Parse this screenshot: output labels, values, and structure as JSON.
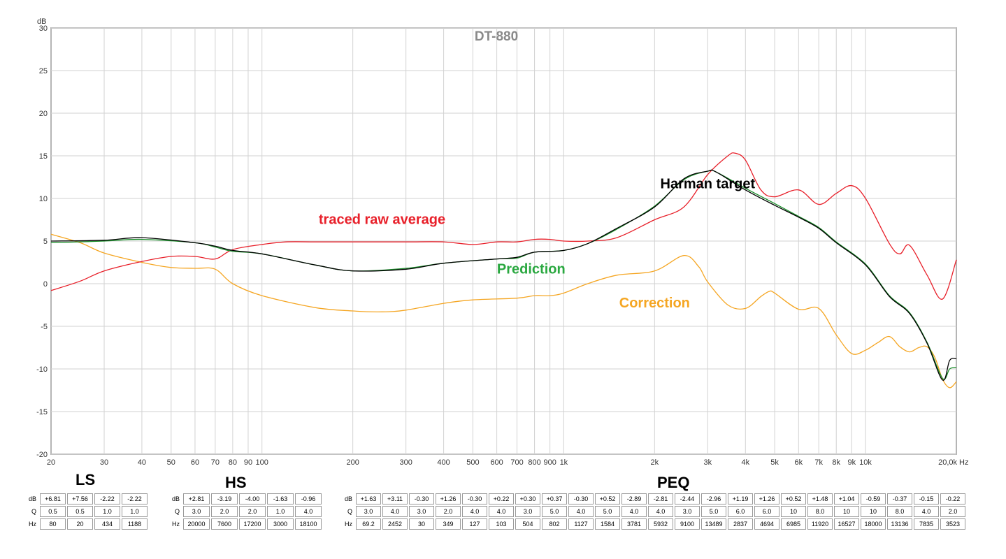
{
  "chart_data": {
    "type": "line",
    "title": "DT-880",
    "y_unit_label": "dB",
    "x_unit_label": "Hz",
    "xscale": "log",
    "xlim": [
      20,
      20000
    ],
    "ylim": [
      -20,
      30
    ],
    "grid": true,
    "y_ticks": [
      "30",
      "25",
      "20",
      "15",
      "10",
      "5",
      "0",
      "-5",
      "-10",
      "-15",
      "-20"
    ],
    "x_ticks": [
      {
        "v": 20,
        "label": "20"
      },
      {
        "v": 30,
        "label": "30"
      },
      {
        "v": 40,
        "label": "40"
      },
      {
        "v": 50,
        "label": "50"
      },
      {
        "v": 60,
        "label": "60"
      },
      {
        "v": 70,
        "label": "70"
      },
      {
        "v": 80,
        "label": "80"
      },
      {
        "v": 90,
        "label": "90"
      },
      {
        "v": 100,
        "label": "100"
      },
      {
        "v": 200,
        "label": "200"
      },
      {
        "v": 300,
        "label": "300"
      },
      {
        "v": 400,
        "label": "400"
      },
      {
        "v": 500,
        "label": "500"
      },
      {
        "v": 600,
        "label": "600"
      },
      {
        "v": 700,
        "label": "700"
      },
      {
        "v": 800,
        "label": "800"
      },
      {
        "v": 900,
        "label": "900"
      },
      {
        "v": 1000,
        "label": "1k"
      },
      {
        "v": 2000,
        "label": "2k"
      },
      {
        "v": 3000,
        "label": "3k"
      },
      {
        "v": 4000,
        "label": "4k"
      },
      {
        "v": 5000,
        "label": "5k"
      },
      {
        "v": 6000,
        "label": "6k"
      },
      {
        "v": 7000,
        "label": "7k"
      },
      {
        "v": 8000,
        "label": "8k"
      },
      {
        "v": 9000,
        "label": "9k"
      },
      {
        "v": 10000,
        "label": "10k"
      },
      {
        "v": 20000,
        "label": "20,0k"
      }
    ],
    "series": [
      {
        "name": "traced raw average",
        "color": "#e8202a",
        "x": [
          20,
          25,
          30,
          40,
          50,
          60,
          70,
          80,
          100,
          120,
          150,
          200,
          300,
          400,
          500,
          600,
          700,
          800,
          900,
          1000,
          1200,
          1500,
          2000,
          2500,
          3000,
          3500,
          3700,
          4000,
          4500,
          5000,
          6000,
          7000,
          8000,
          9000,
          10000,
          12000,
          13000,
          14000,
          16000,
          18000,
          20000
        ],
        "y": [
          -0.8,
          0.3,
          1.5,
          2.6,
          3.2,
          3.2,
          2.9,
          4.0,
          4.6,
          4.9,
          4.9,
          4.9,
          4.9,
          4.9,
          4.6,
          4.9,
          4.9,
          5.2,
          5.2,
          5.0,
          5.0,
          5.4,
          7.5,
          9.0,
          12.8,
          15.0,
          15.3,
          14.5,
          11.0,
          10.2,
          11.0,
          9.3,
          10.6,
          11.5,
          10.0,
          4.7,
          3.5,
          4.5,
          1.0,
          -1.8,
          2.8
        ]
      },
      {
        "name": "Harman target",
        "color": "#000000",
        "x": [
          20,
          30,
          40,
          60,
          70,
          80,
          100,
          150,
          200,
          300,
          400,
          600,
          700,
          800,
          1000,
          1200,
          1500,
          2000,
          2500,
          3000,
          3200,
          4000,
          5000,
          6000,
          7000,
          8000,
          10000,
          12000,
          14000,
          16000,
          18000,
          19000,
          20000
        ],
        "y": [
          5.0,
          5.1,
          5.4,
          4.8,
          4.4,
          3.9,
          3.5,
          2.2,
          1.5,
          1.7,
          2.4,
          2.9,
          3.1,
          3.7,
          3.9,
          4.7,
          6.5,
          9.0,
          12.3,
          13.2,
          13.1,
          11.0,
          9.2,
          7.8,
          6.5,
          4.8,
          2.2,
          -1.5,
          -3.5,
          -7.0,
          -11.3,
          -9.0,
          -8.8
        ]
      },
      {
        "name": "Prediction",
        "color": "#1a8f2a",
        "x": [
          20,
          30,
          40,
          60,
          70,
          80,
          100,
          150,
          200,
          300,
          400,
          600,
          700,
          800,
          1000,
          1200,
          1500,
          2000,
          2500,
          3000,
          3200,
          4000,
          5000,
          6000,
          7000,
          8000,
          10000,
          12000,
          14000,
          16000,
          18000,
          19000,
          20000
        ],
        "y": [
          4.8,
          5.0,
          5.2,
          4.8,
          4.3,
          3.8,
          3.5,
          2.2,
          1.5,
          1.8,
          2.4,
          2.9,
          3.0,
          3.7,
          3.9,
          4.7,
          6.4,
          9.1,
          12.2,
          13.2,
          13.1,
          11.2,
          9.4,
          7.9,
          6.6,
          4.9,
          2.3,
          -1.4,
          -3.4,
          -6.9,
          -11.1,
          -10.0,
          -9.8
        ]
      },
      {
        "name": "Correction",
        "color": "#f5a623",
        "x": [
          20,
          25,
          30,
          40,
          50,
          60,
          70,
          80,
          100,
          150,
          200,
          250,
          300,
          400,
          500,
          700,
          800,
          900,
          1000,
          1200,
          1500,
          2000,
          2500,
          2800,
          3000,
          3500,
          4000,
          4500,
          4800,
          5000,
          6000,
          7000,
          8000,
          9000,
          10000,
          11000,
          12000,
          13000,
          14000,
          15000,
          16000,
          17000,
          18000,
          19000,
          20000
        ],
        "y": [
          5.8,
          4.8,
          3.6,
          2.5,
          1.9,
          1.8,
          1.7,
          0.0,
          -1.4,
          -2.8,
          -3.2,
          -3.3,
          -3.1,
          -2.3,
          -1.9,
          -1.7,
          -1.4,
          -1.4,
          -1.1,
          0.0,
          1.0,
          1.5,
          3.3,
          2.0,
          0.2,
          -2.5,
          -2.9,
          -1.5,
          -0.9,
          -1.1,
          -3.0,
          -2.9,
          -6.0,
          -8.2,
          -7.8,
          -6.9,
          -6.2,
          -7.4,
          -8.0,
          -7.5,
          -7.4,
          -8.7,
          -11.2,
          -12.2,
          -11.5
        ]
      }
    ],
    "annotations": [
      {
        "text": "Harman target",
        "color": "#000000",
        "x": 3000,
        "y": 11.2
      },
      {
        "text": "traced raw average",
        "color": "#e8202a",
        "x": 250,
        "y": 7.0
      },
      {
        "text": "Prediction",
        "color": "#2aa840",
        "x": 780,
        "y": 1.2
      },
      {
        "text": "Correction",
        "color": "#f5a623",
        "x": 2000,
        "y": -2.8
      }
    ]
  },
  "filters": {
    "row_labels": [
      "dB",
      "Q",
      "Hz"
    ],
    "ls": {
      "title": "LS",
      "db": [
        "+6.81",
        "+7.56",
        "-2.22",
        "-2.22"
      ],
      "q": [
        "0.5",
        "0.5",
        "1.0",
        "1.0"
      ],
      "hz": [
        "80",
        "20",
        "434",
        "1188"
      ]
    },
    "hs": {
      "title": "HS",
      "db": [
        "+2.81",
        "-3.19",
        "-4.00",
        "-1.63",
        "-0.96"
      ],
      "q": [
        "3.0",
        "2.0",
        "2.0",
        "1.0",
        "4.0"
      ],
      "hz": [
        "20000",
        "7600",
        "17200",
        "3000",
        "18100"
      ]
    },
    "peq": {
      "title": "PEQ",
      "db": [
        "+1.63",
        "+3.11",
        "-0.30",
        "+1.26",
        "-0.30",
        "+0.22",
        "+0.30",
        "+0.37",
        "-0.30",
        "+0.52",
        "-2.89",
        "-2.81",
        "-2.44",
        "-2.96",
        "+1.19",
        "+1.26",
        "+0.52",
        "+1.48",
        "+1.04",
        "-0.59",
        "-0.37",
        "-0.15",
        "-0.22"
      ],
      "q": [
        "3.0",
        "4.0",
        "3.0",
        "2.0",
        "4.0",
        "4.0",
        "3.0",
        "5.0",
        "4.0",
        "5.0",
        "4.0",
        "4.0",
        "3.0",
        "5.0",
        "6.0",
        "6.0",
        "10",
        "8.0",
        "10",
        "10",
        "8.0",
        "4.0",
        "2.0"
      ],
      "hz": [
        "69.2",
        "2452",
        "30",
        "349",
        "127",
        "103",
        "504",
        "802",
        "1127",
        "1584",
        "3781",
        "5932",
        "9100",
        "13489",
        "2837",
        "4694",
        "6985",
        "11920",
        "16527",
        "18000",
        "13136",
        "7835",
        "3523"
      ]
    }
  }
}
